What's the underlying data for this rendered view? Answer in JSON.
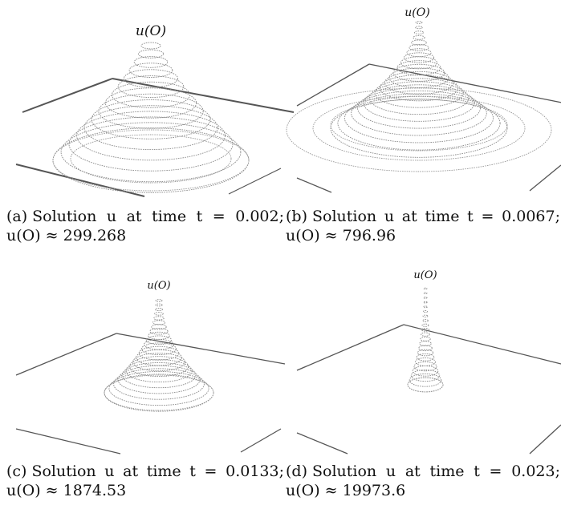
{
  "panels": [
    {
      "id": "a",
      "plot_label": "u(O)",
      "caption": {
        "tag": "(a)",
        "text": "Solution u at time t = 0.002;",
        "line2": "u(O) ≈ 299.268"
      },
      "time": 0.002,
      "peak_value": 299.268
    },
    {
      "id": "b",
      "plot_label": "u(O)",
      "caption": {
        "tag": "(b)",
        "text": "Solution u at time t = 0.0067;",
        "line2": "u(O) ≈ 796.96"
      },
      "time": 0.0067,
      "peak_value": 796.96
    },
    {
      "id": "c",
      "plot_label": "u(O)",
      "caption": {
        "tag": "(c)",
        "text": "Solution u at time t = 0.0133;",
        "line2": "u(O) ≈ 1874.53"
      },
      "time": 0.0133,
      "peak_value": 1874.53
    },
    {
      "id": "d",
      "plot_label": "u(O)",
      "caption": {
        "tag": "(d)",
        "text": "Solution u at time t = 0.023;",
        "line2": "u(O) ≈ 19973.6"
      },
      "time": 0.023,
      "peak_value": 19973.6
    }
  ]
}
